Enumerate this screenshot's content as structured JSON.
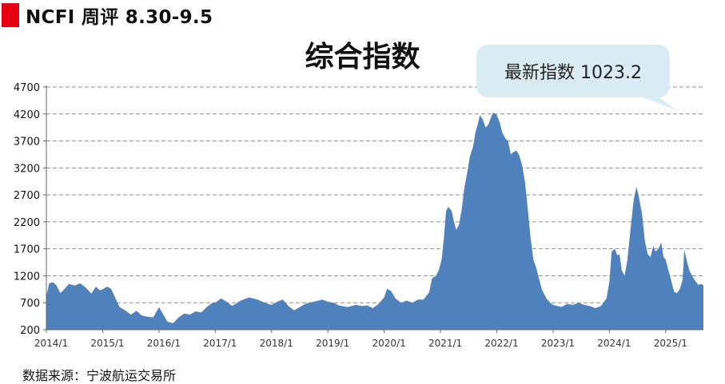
{
  "header": {
    "title": "NCFI 周评 8.30-9.5",
    "accent_color": "#e60012"
  },
  "callout": {
    "text": "最新指数 1023.2",
    "background": "#daecf3"
  },
  "footer": {
    "source": "数据来源：宁波航运交易所"
  },
  "chart_data": {
    "type": "area",
    "title": "综合指数",
    "color": "#4f81bd",
    "xlabel": "",
    "ylabel": "",
    "ylim": [
      200,
      4700
    ],
    "yticks": [
      200,
      700,
      1200,
      1700,
      2200,
      2700,
      3200,
      3700,
      4200,
      4700
    ],
    "xlim": [
      2014.0,
      2025.67
    ],
    "xticks": [
      {
        "x": 2014.0,
        "label": "2014/1"
      },
      {
        "x": 2015.0,
        "label": "2015/1"
      },
      {
        "x": 2016.0,
        "label": "2016/1"
      },
      {
        "x": 2017.0,
        "label": "2017/1"
      },
      {
        "x": 2018.0,
        "label": "2018/1"
      },
      {
        "x": 2019.0,
        "label": "2019/1"
      },
      {
        "x": 2020.0,
        "label": "2020/1"
      },
      {
        "x": 2021.0,
        "label": "2021/1"
      },
      {
        "x": 2022.0,
        "label": "2022/1"
      },
      {
        "x": 2023.0,
        "label": "2023/1"
      },
      {
        "x": 2024.0,
        "label": "2024/1"
      },
      {
        "x": 2025.0,
        "label": "2025/1"
      }
    ],
    "grid": "horizontal-dashed",
    "points": [
      [
        2014.0,
        820
      ],
      [
        2014.05,
        1060
      ],
      [
        2014.12,
        1080
      ],
      [
        2014.18,
        1020
      ],
      [
        2014.25,
        880
      ],
      [
        2014.32,
        950
      ],
      [
        2014.4,
        1050
      ],
      [
        2014.5,
        1020
      ],
      [
        2014.6,
        1060
      ],
      [
        2014.7,
        980
      ],
      [
        2014.8,
        870
      ],
      [
        2014.88,
        1000
      ],
      [
        2014.95,
        930
      ],
      [
        2015.0,
        950
      ],
      [
        2015.08,
        1000
      ],
      [
        2015.15,
        960
      ],
      [
        2015.22,
        800
      ],
      [
        2015.3,
        620
      ],
      [
        2015.4,
        560
      ],
      [
        2015.5,
        480
      ],
      [
        2015.6,
        550
      ],
      [
        2015.7,
        460
      ],
      [
        2015.8,
        440
      ],
      [
        2015.9,
        430
      ],
      [
        2016.0,
        620
      ],
      [
        2016.05,
        530
      ],
      [
        2016.15,
        350
      ],
      [
        2016.25,
        320
      ],
      [
        2016.35,
        430
      ],
      [
        2016.45,
        500
      ],
      [
        2016.55,
        480
      ],
      [
        2016.65,
        540
      ],
      [
        2016.75,
        520
      ],
      [
        2016.85,
        620
      ],
      [
        2016.95,
        700
      ],
      [
        2017.0,
        700
      ],
      [
        2017.1,
        780
      ],
      [
        2017.2,
        720
      ],
      [
        2017.3,
        640
      ],
      [
        2017.45,
        740
      ],
      [
        2017.6,
        800
      ],
      [
        2017.75,
        760
      ],
      [
        2017.9,
        690
      ],
      [
        2018.0,
        660
      ],
      [
        2018.1,
        720
      ],
      [
        2018.2,
        760
      ],
      [
        2018.3,
        640
      ],
      [
        2018.4,
        560
      ],
      [
        2018.5,
        620
      ],
      [
        2018.6,
        680
      ],
      [
        2018.75,
        720
      ],
      [
        2018.9,
        760
      ],
      [
        2019.0,
        720
      ],
      [
        2019.1,
        700
      ],
      [
        2019.2,
        650
      ],
      [
        2019.35,
        620
      ],
      [
        2019.5,
        660
      ],
      [
        2019.6,
        640
      ],
      [
        2019.7,
        650
      ],
      [
        2019.8,
        600
      ],
      [
        2019.9,
        680
      ],
      [
        2020.0,
        800
      ],
      [
        2020.05,
        960
      ],
      [
        2020.12,
        920
      ],
      [
        2020.2,
        780
      ],
      [
        2020.3,
        700
      ],
      [
        2020.4,
        740
      ],
      [
        2020.5,
        700
      ],
      [
        2020.6,
        760
      ],
      [
        2020.7,
        760
      ],
      [
        2020.8,
        900
      ],
      [
        2020.85,
        1150
      ],
      [
        2020.92,
        1200
      ],
      [
        2020.97,
        1300
      ],
      [
        2021.02,
        1500
      ],
      [
        2021.06,
        1900
      ],
      [
        2021.1,
        2400
      ],
      [
        2021.14,
        2480
      ],
      [
        2021.2,
        2400
      ],
      [
        2021.24,
        2200
      ],
      [
        2021.28,
        2050
      ],
      [
        2021.33,
        2150
      ],
      [
        2021.38,
        2450
      ],
      [
        2021.42,
        2800
      ],
      [
        2021.48,
        3150
      ],
      [
        2021.52,
        3400
      ],
      [
        2021.58,
        3600
      ],
      [
        2021.62,
        3850
      ],
      [
        2021.66,
        4000
      ],
      [
        2021.7,
        4180
      ],
      [
        2021.75,
        4100
      ],
      [
        2021.8,
        3950
      ],
      [
        2021.85,
        4000
      ],
      [
        2021.9,
        4150
      ],
      [
        2021.94,
        4230
      ],
      [
        2022.0,
        4180
      ],
      [
        2022.05,
        4050
      ],
      [
        2022.1,
        3850
      ],
      [
        2022.15,
        3750
      ],
      [
        2022.2,
        3700
      ],
      [
        2022.25,
        3450
      ],
      [
        2022.3,
        3500
      ],
      [
        2022.35,
        3520
      ],
      [
        2022.4,
        3430
      ],
      [
        2022.45,
        3250
      ],
      [
        2022.5,
        2950
      ],
      [
        2022.55,
        2450
      ],
      [
        2022.6,
        1900
      ],
      [
        2022.65,
        1500
      ],
      [
        2022.7,
        1350
      ],
      [
        2022.75,
        1150
      ],
      [
        2022.8,
        950
      ],
      [
        2022.88,
        780
      ],
      [
        2022.95,
        700
      ],
      [
        2023.0,
        660
      ],
      [
        2023.08,
        640
      ],
      [
        2023.15,
        620
      ],
      [
        2023.25,
        680
      ],
      [
        2023.35,
        660
      ],
      [
        2023.45,
        700
      ],
      [
        2023.55,
        660
      ],
      [
        2023.65,
        640
      ],
      [
        2023.75,
        600
      ],
      [
        2023.85,
        640
      ],
      [
        2023.95,
        780
      ],
      [
        2024.0,
        1100
      ],
      [
        2024.04,
        1650
      ],
      [
        2024.1,
        1700
      ],
      [
        2024.14,
        1580
      ],
      [
        2024.18,
        1600
      ],
      [
        2024.22,
        1300
      ],
      [
        2024.27,
        1200
      ],
      [
        2024.32,
        1500
      ],
      [
        2024.38,
        2100
      ],
      [
        2024.43,
        2600
      ],
      [
        2024.48,
        2850
      ],
      [
        2024.52,
        2680
      ],
      [
        2024.58,
        2350
      ],
      [
        2024.63,
        1850
      ],
      [
        2024.68,
        1600
      ],
      [
        2024.73,
        1550
      ],
      [
        2024.78,
        1750
      ],
      [
        2024.82,
        1650
      ],
      [
        2024.87,
        1700
      ],
      [
        2024.92,
        1820
      ],
      [
        2024.96,
        1550
      ],
      [
        2025.0,
        1500
      ],
      [
        2025.05,
        1300
      ],
      [
        2025.1,
        1100
      ],
      [
        2025.15,
        900
      ],
      [
        2025.2,
        880
      ],
      [
        2025.25,
        950
      ],
      [
        2025.3,
        1120
      ],
      [
        2025.33,
        1680
      ],
      [
        2025.37,
        1500
      ],
      [
        2025.42,
        1300
      ],
      [
        2025.48,
        1180
      ],
      [
        2025.53,
        1100
      ],
      [
        2025.58,
        1030
      ],
      [
        2025.63,
        1050
      ],
      [
        2025.67,
        1023
      ]
    ]
  }
}
